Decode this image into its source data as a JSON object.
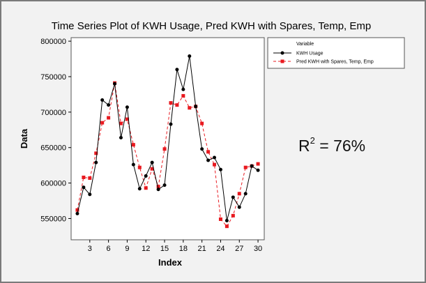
{
  "chart_data": {
    "type": "line",
    "title": "Time Series Plot of KWH Usage, Pred KWH with Spares, Temp, Emp",
    "xlabel": "Index",
    "ylabel": "Data",
    "xlim": [
      0,
      31
    ],
    "ylim": [
      520000,
      805000
    ],
    "x_ticks": [
      3,
      6,
      9,
      12,
      15,
      18,
      21,
      24,
      27,
      30
    ],
    "y_ticks": [
      550000,
      600000,
      650000,
      700000,
      750000,
      800000
    ],
    "x_tick_labels": [
      "3",
      "6",
      "9",
      "12",
      "15",
      "18",
      "21",
      "24",
      "27",
      "30"
    ],
    "y_tick_labels": [
      "550000",
      "600000",
      "650000",
      "700000",
      "750000",
      "800000"
    ],
    "x": [
      1,
      2,
      3,
      4,
      5,
      6,
      7,
      8,
      9,
      10,
      11,
      12,
      13,
      14,
      15,
      16,
      17,
      18,
      19,
      20,
      21,
      22,
      23,
      24,
      25,
      26,
      27,
      28,
      29,
      30
    ],
    "legend": {
      "title": "Variable",
      "placement": "top-right"
    },
    "grid": false,
    "series": [
      {
        "name": "KWH Usage",
        "color": "#000000",
        "marker": "circle",
        "line": "solid",
        "values": [
          557000,
          594000,
          584000,
          629000,
          717000,
          710000,
          740000,
          664000,
          707000,
          626000,
          592000,
          610000,
          629000,
          591000,
          597000,
          683000,
          760000,
          732000,
          779000,
          708000,
          648000,
          632000,
          636000,
          619000,
          547000,
          580000,
          566000,
          585000,
          624000,
          618000
        ]
      },
      {
        "name": "Pred KWH with Spares, Temp, Emp",
        "color": "#e8191f",
        "marker": "square",
        "line": "dashed",
        "values": [
          562000,
          608000,
          607000,
          642000,
          685000,
          692000,
          741000,
          684000,
          690000,
          654000,
          622000,
          593000,
          620000,
          595000,
          648000,
          713000,
          710000,
          723000,
          706000,
          708000,
          684000,
          644000,
          626000,
          549000,
          539000,
          554000,
          585000,
          622000,
          624000,
          627000
        ]
      }
    ]
  },
  "annotation": {
    "r2_prefix": "R",
    "r2_exp": "2",
    "r2_value": " = 76%"
  }
}
